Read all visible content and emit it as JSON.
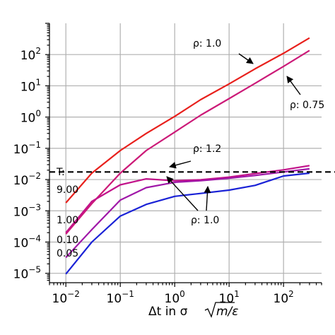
{
  "chart_data": {
    "type": "line",
    "title": "",
    "xlabel": "Δt in σ√m/ε",
    "ylabel": "",
    "xscale": "log",
    "yscale": "log",
    "xlim": [
      0.005,
      500
    ],
    "ylim": [
      5e-06,
      1000
    ],
    "grid": true,
    "x_tick_values": [
      0.01,
      0.1,
      1,
      10,
      100
    ],
    "x_tick_labels": [
      {
        "base": "10",
        "exp": "−2"
      },
      {
        "base": "10",
        "exp": "−1"
      },
      {
        "base": "10",
        "exp": "0"
      },
      {
        "base": "10",
        "exp": "1"
      },
      {
        "base": "10",
        "exp": "2"
      }
    ],
    "y_tick_values": [
      1e-05,
      0.0001,
      0.001,
      0.01,
      0.1,
      1,
      10,
      100
    ],
    "y_tick_labels": [
      {
        "base": "10",
        "exp": "−5"
      },
      {
        "base": "10",
        "exp": "−4"
      },
      {
        "base": "10",
        "exp": "−3"
      },
      {
        "base": "10",
        "exp": "−2"
      },
      {
        "base": "10",
        "exp": "−1"
      },
      {
        "base": "10",
        "exp": "0"
      },
      {
        "base": "10",
        "exp": "1"
      },
      {
        "base": "10",
        "exp": "2"
      }
    ],
    "series": [
      {
        "color": "#e8201c",
        "x": [
          0.01,
          0.03,
          0.1,
          0.3,
          1,
          3,
          10,
          30,
          100,
          300
        ],
        "y": [
          0.0018,
          0.016,
          0.085,
          0.3,
          1.05,
          3.6,
          11.5,
          35,
          110,
          340
        ]
      },
      {
        "color": "#cc1a78",
        "x": [
          0.01,
          0.03,
          0.1,
          0.3,
          1,
          3,
          10,
          30,
          100,
          300
        ],
        "y": [
          0.00018,
          0.0017,
          0.016,
          0.085,
          0.33,
          1.15,
          3.9,
          12,
          42,
          135
        ]
      },
      {
        "color": "#c2128a",
        "x": [
          0.01,
          0.03,
          0.1,
          0.3,
          1,
          3,
          10,
          30,
          100,
          300
        ],
        "y": [
          0.0002,
          0.002,
          0.0068,
          0.0105,
          0.0092,
          0.0098,
          0.012,
          0.0155,
          0.0205,
          0.028
        ]
      },
      {
        "color": "#a017a8",
        "x": [
          0.01,
          0.03,
          0.1,
          0.3,
          1,
          3,
          10,
          30,
          100,
          300
        ],
        "y": [
          3.2e-05,
          0.00025,
          0.0022,
          0.0055,
          0.0082,
          0.0092,
          0.011,
          0.0135,
          0.0175,
          0.022
        ]
      },
      {
        "color": "#1a22d6",
        "x": [
          0.01,
          0.03,
          0.1,
          0.3,
          1,
          3,
          10,
          30,
          100,
          300
        ],
        "y": [
          9.5e-06,
          0.0001,
          0.00068,
          0.0016,
          0.0029,
          0.0036,
          0.0046,
          0.0065,
          0.013,
          0.016
        ]
      }
    ],
    "hline": {
      "y": 0.0175,
      "color": "#000000",
      "style": "dashed"
    },
    "annotations": [
      {
        "text": "ρ: 1.0",
        "arrow": "down-right"
      },
      {
        "text": "ρ: 0.75",
        "arrow": "up-left"
      },
      {
        "text": "ρ: 1.2",
        "arrow": "left"
      },
      {
        "text": "ρ: 1.0",
        "arrow": "up-left-double"
      }
    ],
    "temperature_legend": {
      "title": "T:",
      "values": [
        "9.00",
        "1.00",
        "0.10",
        "0.05"
      ]
    }
  }
}
